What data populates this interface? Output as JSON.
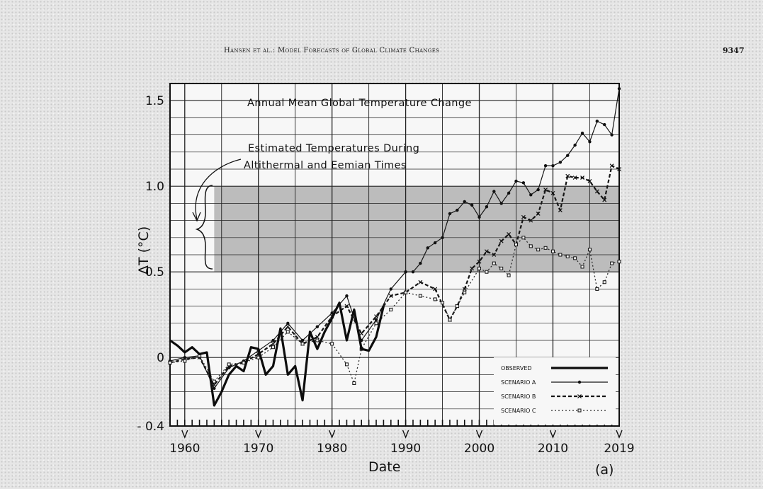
{
  "header": {
    "running_title": "Hansen et al.: Model Forecasts of Global Climate Changes",
    "page_number": "9347"
  },
  "chart_data": {
    "type": "line",
    "title": "Annual Mean Global Temperature Change",
    "annotation": [
      "Estimated Temperatures During",
      "Altithermal and Eemian Times"
    ],
    "shaded_band": {
      "x": [
        1964,
        2019
      ],
      "y": [
        0.5,
        1.0
      ]
    },
    "xlabel": "Date",
    "ylabel": "ΔT (°C)",
    "panel_label": "(a)",
    "xlim": [
      1958,
      2019
    ],
    "ylim": [
      -0.4,
      1.6
    ],
    "x_ticks": [
      1960,
      1970,
      1980,
      1990,
      2000,
      2010,
      2019
    ],
    "y_ticks": [
      {
        "value": 1.5,
        "label": "1.5"
      },
      {
        "value": 1.0,
        "label": "1.0"
      },
      {
        "value": 0.5,
        "label": "0.5"
      },
      {
        "value": 0,
        "label": "0"
      },
      {
        "value": -0.4,
        "label": "- 0.4"
      }
    ],
    "grid": true,
    "legend_position": "bottom-right",
    "series": [
      {
        "name": "OBSERVED",
        "style": "thick-solid",
        "x": [
          1958,
          1959,
          1960,
          1961,
          1962,
          1963,
          1964,
          1965,
          1966,
          1967,
          1968,
          1969,
          1970,
          1971,
          1972,
          1973,
          1974,
          1975,
          1976,
          1977,
          1978,
          1979,
          1980,
          1981,
          1982,
          1983,
          1984,
          1985,
          1986,
          1987
        ],
        "values": [
          0.1,
          0.07,
          0.03,
          0.06,
          0.02,
          0.03,
          -0.28,
          -0.2,
          -0.1,
          -0.05,
          -0.08,
          0.06,
          0.05,
          -0.1,
          -0.05,
          0.17,
          -0.1,
          -0.05,
          -0.25,
          0.15,
          0.05,
          0.15,
          0.23,
          0.32,
          0.1,
          0.28,
          0.05,
          0.04,
          0.12,
          0.3
        ]
      },
      {
        "name": "SCENARIO A",
        "style": "thin-solid-dot",
        "x": [
          1958,
          1960,
          1962,
          1964,
          1966,
          1968,
          1970,
          1972,
          1974,
          1976,
          1978,
          1980,
          1982,
          1984,
          1986,
          1988,
          1990,
          1991,
          1992,
          1993,
          1994,
          1995,
          1996,
          1997,
          1998,
          1999,
          2000,
          2001,
          2002,
          2003,
          2004,
          2005,
          2006,
          2007,
          2008,
          2009,
          2010,
          2011,
          2012,
          2013,
          2014,
          2015,
          2016,
          2017,
          2018,
          2019
        ],
        "values": [
          -0.02,
          0.0,
          0.01,
          -0.18,
          -0.06,
          -0.02,
          0.04,
          0.1,
          0.2,
          0.1,
          0.18,
          0.26,
          0.36,
          0.1,
          0.22,
          0.4,
          0.5,
          0.5,
          0.55,
          0.64,
          0.67,
          0.7,
          0.84,
          0.86,
          0.91,
          0.89,
          0.82,
          0.88,
          0.97,
          0.9,
          0.96,
          1.03,
          1.02,
          0.95,
          0.98,
          1.12,
          1.12,
          1.14,
          1.18,
          1.24,
          1.31,
          1.26,
          1.38,
          1.36,
          1.3,
          1.57
        ]
      },
      {
        "name": "SCENARIO B",
        "style": "thick-dashed-x",
        "x": [
          1958,
          1960,
          1962,
          1964,
          1966,
          1968,
          1970,
          1972,
          1974,
          1976,
          1978,
          1980,
          1982,
          1984,
          1986,
          1988,
          1990,
          1992,
          1994,
          1996,
          1997,
          1998,
          1999,
          2000,
          2001,
          2002,
          2003,
          2004,
          2005,
          2006,
          2007,
          2008,
          2009,
          2010,
          2011,
          2012,
          2013,
          2014,
          2015,
          2016,
          2017,
          2018,
          2019
        ],
        "values": [
          -0.03,
          -0.01,
          0.0,
          -0.16,
          -0.05,
          -0.03,
          0.02,
          0.08,
          0.18,
          0.08,
          0.12,
          0.24,
          0.3,
          0.14,
          0.24,
          0.36,
          0.38,
          0.44,
          0.4,
          0.22,
          0.3,
          0.4,
          0.52,
          0.56,
          0.62,
          0.6,
          0.68,
          0.72,
          0.66,
          0.82,
          0.8,
          0.84,
          0.98,
          0.96,
          0.86,
          1.06,
          1.05,
          1.05,
          1.03,
          0.97,
          0.92,
          1.12,
          1.1
        ]
      },
      {
        "name": "SCENARIO C",
        "style": "dotted-square",
        "x": [
          1958,
          1960,
          1962,
          1964,
          1966,
          1968,
          1970,
          1972,
          1974,
          1976,
          1978,
          1980,
          1982,
          1983,
          1984,
          1986,
          1988,
          1990,
          1992,
          1994,
          1995,
          1996,
          1997,
          1998,
          2000,
          2001,
          2002,
          2003,
          2004,
          2005,
          2006,
          2007,
          2008,
          2009,
          2010,
          2011,
          2012,
          2013,
          2014,
          2015,
          2016,
          2017,
          2018,
          2019
        ],
        "values": [
          -0.03,
          -0.02,
          0.01,
          -0.14,
          -0.04,
          -0.03,
          0.0,
          0.06,
          0.15,
          0.08,
          0.1,
          0.08,
          -0.04,
          -0.15,
          0.05,
          0.2,
          0.28,
          0.38,
          0.36,
          0.34,
          0.32,
          0.22,
          0.3,
          0.38,
          0.52,
          0.5,
          0.55,
          0.52,
          0.48,
          0.66,
          0.7,
          0.65,
          0.63,
          0.64,
          0.62,
          0.6,
          0.59,
          0.58,
          0.53,
          0.63,
          0.4,
          0.44,
          0.55,
          0.56
        ]
      }
    ]
  }
}
